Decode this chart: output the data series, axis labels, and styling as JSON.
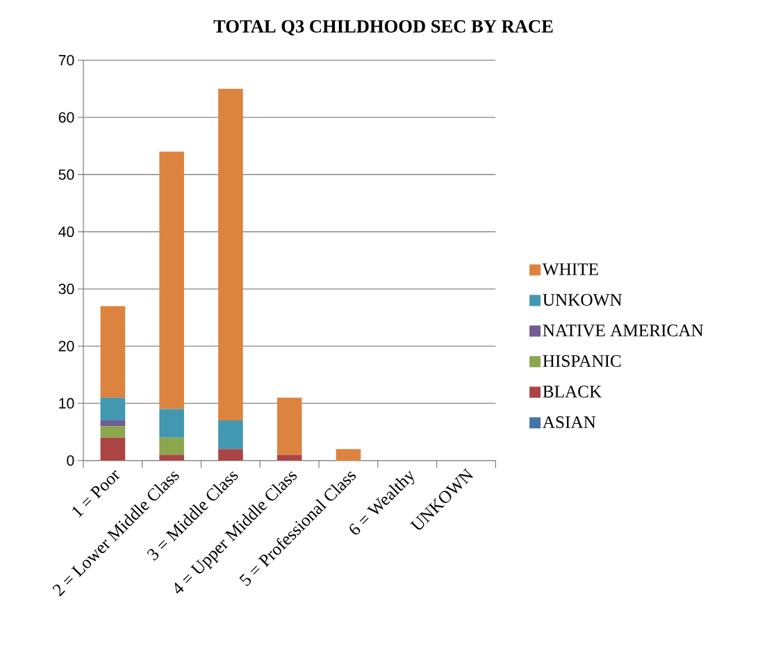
{
  "chart_data": {
    "type": "bar",
    "title": "TOTAL Q3 CHILDHOOD SEC BY RACE",
    "categories": [
      "1 = Poor",
      "2 = Lower Middle Class",
      "3 = Middle Class",
      "4 = Upper Middle Class",
      "5 = Professional Class",
      "6 = Wealthy",
      "UNKOWN"
    ],
    "stacked": true,
    "series": [
      {
        "name": "ASIAN",
        "color": "#4673a9",
        "values": [
          0,
          0,
          0,
          0,
          0,
          0,
          0
        ]
      },
      {
        "name": "BLACK",
        "color": "#ab4543",
        "values": [
          4,
          1,
          2,
          1,
          0,
          0,
          0
        ]
      },
      {
        "name": "HISPANIC",
        "color": "#8ba64d",
        "values": [
          2,
          3,
          0,
          0,
          0,
          0,
          0
        ]
      },
      {
        "name": "NATIVE AMERICAN",
        "color": "#735b94",
        "values": [
          1,
          0,
          0,
          0,
          0,
          0,
          0
        ]
      },
      {
        "name": "UNKOWN",
        "color": "#4298b0",
        "values": [
          4,
          5,
          5,
          0,
          0,
          0,
          0
        ]
      },
      {
        "name": "WHITE",
        "color": "#dd8340",
        "values": [
          16,
          45,
          58,
          10,
          2,
          0,
          0
        ]
      }
    ],
    "ylim": [
      0,
      70
    ],
    "yticks": [
      0,
      10,
      20,
      30,
      40,
      50,
      60,
      70
    ],
    "grid": "y",
    "legend": "right"
  }
}
